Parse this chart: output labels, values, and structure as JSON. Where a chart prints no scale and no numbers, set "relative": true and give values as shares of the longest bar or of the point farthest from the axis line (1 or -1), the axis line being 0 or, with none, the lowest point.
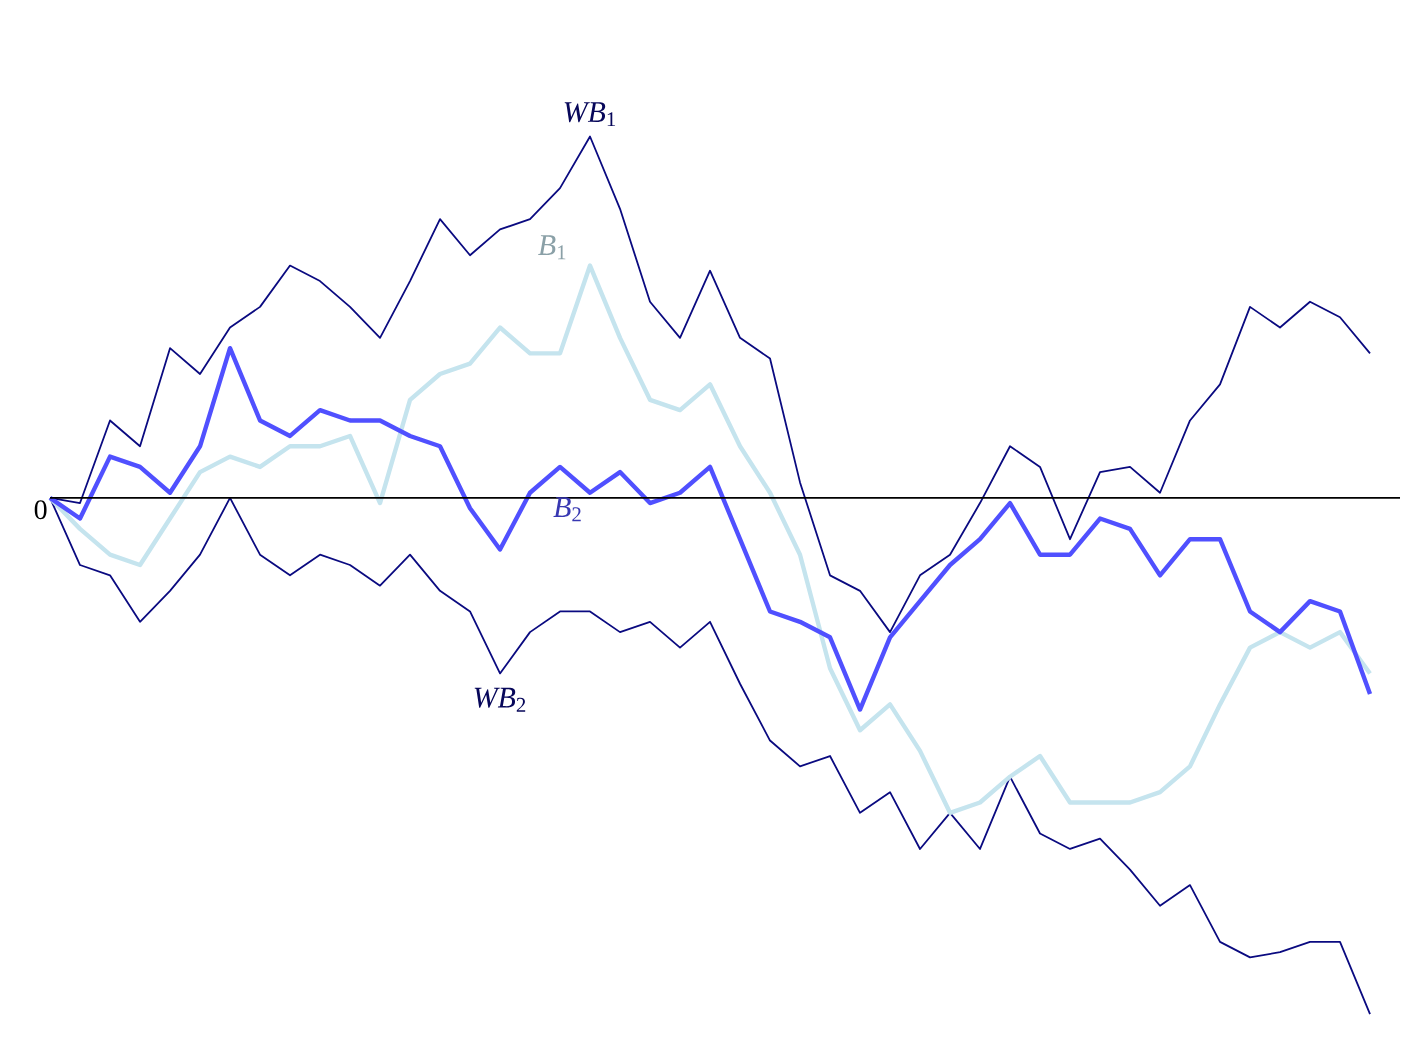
{
  "chart_data": {
    "type": "line",
    "relative": true,
    "legend": false,
    "marker": "none",
    "line_style": "solid",
    "categories": [
      null,
      null,
      null,
      null,
      null,
      null,
      null,
      null,
      null,
      null,
      null,
      null,
      null,
      null,
      null,
      null,
      null,
      null,
      null,
      null,
      null,
      null,
      null,
      null,
      null,
      null,
      null,
      null,
      null,
      null,
      null,
      null,
      null,
      null,
      null,
      null,
      null,
      null,
      null,
      null,
      null,
      null,
      null,
      null,
      null
    ],
    "series": [
      {
        "name": "*WB*$_{1}$",
        "color": "#0a0a80",
        "values": [
          0,
          -0.01,
          0.15,
          0.1,
          0.29,
          0.24,
          0.33,
          0.37,
          0.45,
          0.42,
          0.37,
          0.31,
          0.42,
          0.54,
          0.47,
          0.52,
          0.54,
          0.6,
          0.7,
          0.56,
          0.38,
          0.31,
          0.44,
          0.31,
          0.27,
          0.03,
          -0.15,
          -0.18,
          -0.26,
          -0.15,
          -0.11,
          -0.01,
          0.1,
          0.06,
          -0.08,
          0.05,
          0.06,
          0.01,
          0.15,
          0.22,
          0.37,
          0.33,
          0.38,
          0.35,
          0.28
        ]
      },
      {
        "name": "*B*$_{1}$",
        "color": "#c5e4ee",
        "values": [
          0,
          -0.06,
          -0.11,
          -0.13,
          -0.04,
          0.05,
          0.08,
          0.06,
          0.1,
          0.1,
          0.12,
          -0.01,
          0.19,
          0.24,
          0.26,
          0.33,
          0.28,
          0.28,
          0.45,
          0.31,
          0.19,
          0.17,
          0.22,
          0.1,
          0.01,
          -0.11,
          -0.33,
          -0.45,
          -0.4,
          -0.49,
          -0.61,
          -0.59,
          -0.54,
          -0.5,
          -0.59,
          -0.59,
          -0.59,
          -0.57,
          -0.52,
          -0.4,
          -0.29,
          -0.26,
          -0.29,
          -0.26,
          -0.34
        ]
      },
      {
        "name": "*B*$_{2}$",
        "color": "#5050ff",
        "values": [
          0,
          -0.04,
          0.08,
          0.06,
          0.01,
          0.1,
          0.29,
          0.15,
          0.12,
          0.17,
          0.15,
          0.15,
          0.12,
          0.1,
          -0.02,
          -0.1,
          0.01,
          0.06,
          0.01,
          0.05,
          -0.01,
          0.01,
          0.06,
          -0.08,
          -0.22,
          -0.24,
          -0.27,
          -0.41,
          -0.27,
          -0.2,
          -0.13,
          -0.08,
          -0.01,
          -0.11,
          -0.11,
          -0.04,
          -0.06,
          -0.15,
          -0.08,
          -0.08,
          -0.22,
          -0.26,
          -0.2,
          -0.22,
          -0.38
        ]
      },
      {
        "name": "*WB*$_{2}$",
        "color": "#0a0a80",
        "values": [
          0,
          -0.13,
          -0.15,
          -0.24,
          -0.18,
          -0.11,
          0,
          -0.11,
          -0.15,
          -0.11,
          -0.13,
          -0.17,
          -0.11,
          -0.18,
          -0.22,
          -0.34,
          -0.26,
          -0.22,
          -0.22,
          -0.26,
          -0.24,
          -0.29,
          -0.24,
          -0.36,
          -0.47,
          -0.52,
          -0.5,
          -0.61,
          -0.57,
          -0.68,
          -0.61,
          -0.68,
          -0.54,
          -0.65,
          -0.68,
          -0.66,
          -0.72,
          -0.79,
          -0.75,
          -0.86,
          -0.89,
          -0.88,
          -0.86,
          -0.86,
          -1
        ]
      }
    ],
    "annotations": [
      {
        "text": "0",
        "y": 0
      }
    ]
  }
}
